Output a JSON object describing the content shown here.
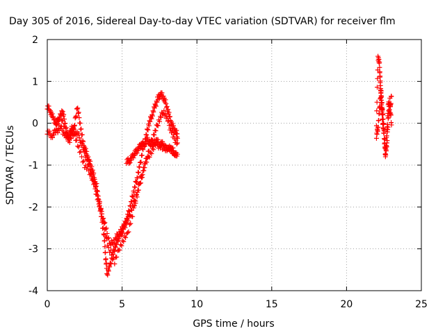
{
  "chart_data": {
    "type": "scatter",
    "title": "Day 305 of 2016, Sidereal Day-to-day VTEC variation (SDTVAR) for receiver flm",
    "xlabel": "GPS time / hours",
    "ylabel": "SDTVAR / TECUs",
    "xlim": [
      0,
      25
    ],
    "ylim": [
      -4,
      2
    ],
    "x_ticks": [
      "0",
      "5",
      "10",
      "15",
      "20",
      "25"
    ],
    "y_ticks": [
      "-4",
      "-3",
      "-2",
      "-1",
      "0",
      "1",
      "2"
    ],
    "grid": true,
    "marker": "plus",
    "color": "#ff0000",
    "series": [
      {
        "x": [
          0.0,
          0.2,
          0.4,
          0.6,
          0.8,
          1.0,
          1.2,
          1.4,
          1.6,
          1.8,
          2.0,
          2.2,
          2.4,
          2.6,
          2.8,
          3.0,
          3.2,
          3.4,
          3.6,
          3.8,
          3.9,
          4.0,
          4.2,
          4.4,
          4.6,
          4.8,
          5.0,
          5.2,
          5.4,
          5.6,
          5.8,
          6.0,
          6.2,
          6.4,
          6.6,
          6.8,
          7.0,
          7.2,
          7.4,
          7.6,
          7.8,
          8.0,
          8.2,
          8.4,
          8.6,
          8.7
        ],
        "y": [
          0.4,
          0.3,
          0.1,
          0.0,
          0.1,
          0.3,
          0.0,
          -0.4,
          -0.2,
          -0.1,
          0.4,
          0.0,
          -0.5,
          -0.7,
          -0.9,
          -1.1,
          -1.4,
          -1.8,
          -2.2,
          -2.7,
          -3.2,
          -3.6,
          -3.4,
          -3.1,
          -2.9,
          -2.7,
          -2.6,
          -2.4,
          -2.2,
          -1.9,
          -1.6,
          -1.3,
          -1.0,
          -0.6,
          -0.3,
          0.0,
          0.2,
          0.4,
          0.6,
          0.7,
          0.6,
          0.4,
          0.1,
          -0.1,
          -0.2,
          -0.3
        ]
      },
      {
        "x": [
          0.0,
          0.3,
          0.6,
          0.9,
          1.2,
          1.5,
          1.8,
          2.1,
          2.4,
          2.7,
          3.0,
          3.3,
          3.6,
          3.9,
          4.2,
          4.5,
          4.8,
          5.1,
          5.4,
          5.7,
          6.0,
          6.3,
          6.6,
          6.9,
          7.2,
          7.5,
          7.8,
          8.1,
          8.4,
          8.7
        ],
        "y": [
          -0.2,
          -0.3,
          -0.2,
          -0.1,
          -0.3,
          -0.4,
          -0.2,
          -0.3,
          -0.6,
          -0.9,
          -1.3,
          -1.7,
          -2.1,
          -2.5,
          -2.9,
          -2.8,
          -2.6,
          -2.5,
          -2.3,
          -2.0,
          -1.7,
          -1.3,
          -0.9,
          -0.5,
          -0.2,
          0.1,
          0.3,
          0.0,
          -0.3,
          -0.5
        ]
      },
      {
        "x": [
          0.5,
          0.9,
          1.3,
          1.7,
          2.1,
          2.5,
          2.9,
          3.3,
          3.7,
          4.1,
          4.5,
          4.9,
          5.3,
          5.7,
          6.1,
          6.5,
          6.9,
          7.3,
          7.7,
          8.1,
          8.5
        ],
        "y": [
          -0.1,
          0.2,
          -0.3,
          -0.1,
          -0.6,
          -1.0,
          -1.2,
          -1.5,
          -2.3,
          -3.0,
          -3.3,
          -2.9,
          -2.7,
          -2.2,
          -1.5,
          -1.0,
          -0.7,
          -0.5,
          -0.6,
          -0.6,
          -0.7
        ]
      },
      {
        "x": [
          5.3,
          5.5,
          5.7,
          5.9,
          6.1,
          6.3,
          6.5,
          6.7,
          6.9,
          7.1,
          7.3,
          7.5,
          7.7,
          7.9,
          8.1,
          8.3,
          8.5,
          8.7
        ],
        "y": [
          -0.9,
          -0.9,
          -0.8,
          -0.7,
          -0.6,
          -0.5,
          -0.5,
          -0.4,
          -0.5,
          -0.5,
          -0.4,
          -0.5,
          -0.5,
          -0.6,
          -0.6,
          -0.6,
          -0.7,
          -0.8
        ]
      },
      {
        "x": [
          22.0,
          22.1,
          22.2,
          22.25,
          22.3,
          22.35,
          22.4,
          22.5,
          22.6,
          22.7,
          22.8,
          22.9,
          23.0
        ],
        "y": [
          0.0,
          1.6,
          1.4,
          1.0,
          0.7,
          0.4,
          0.1,
          -0.3,
          -0.7,
          -0.5,
          0.2,
          0.6,
          -0.1
        ]
      },
      {
        "x": [
          22.0,
          22.1,
          22.2,
          22.3,
          22.4,
          22.5,
          22.6,
          22.7,
          22.8,
          22.9,
          23.0
        ],
        "y": [
          -0.3,
          -0.1,
          0.3,
          0.8,
          0.3,
          -0.1,
          -0.8,
          -0.2,
          0.5,
          0.2,
          0.7
        ]
      }
    ]
  }
}
